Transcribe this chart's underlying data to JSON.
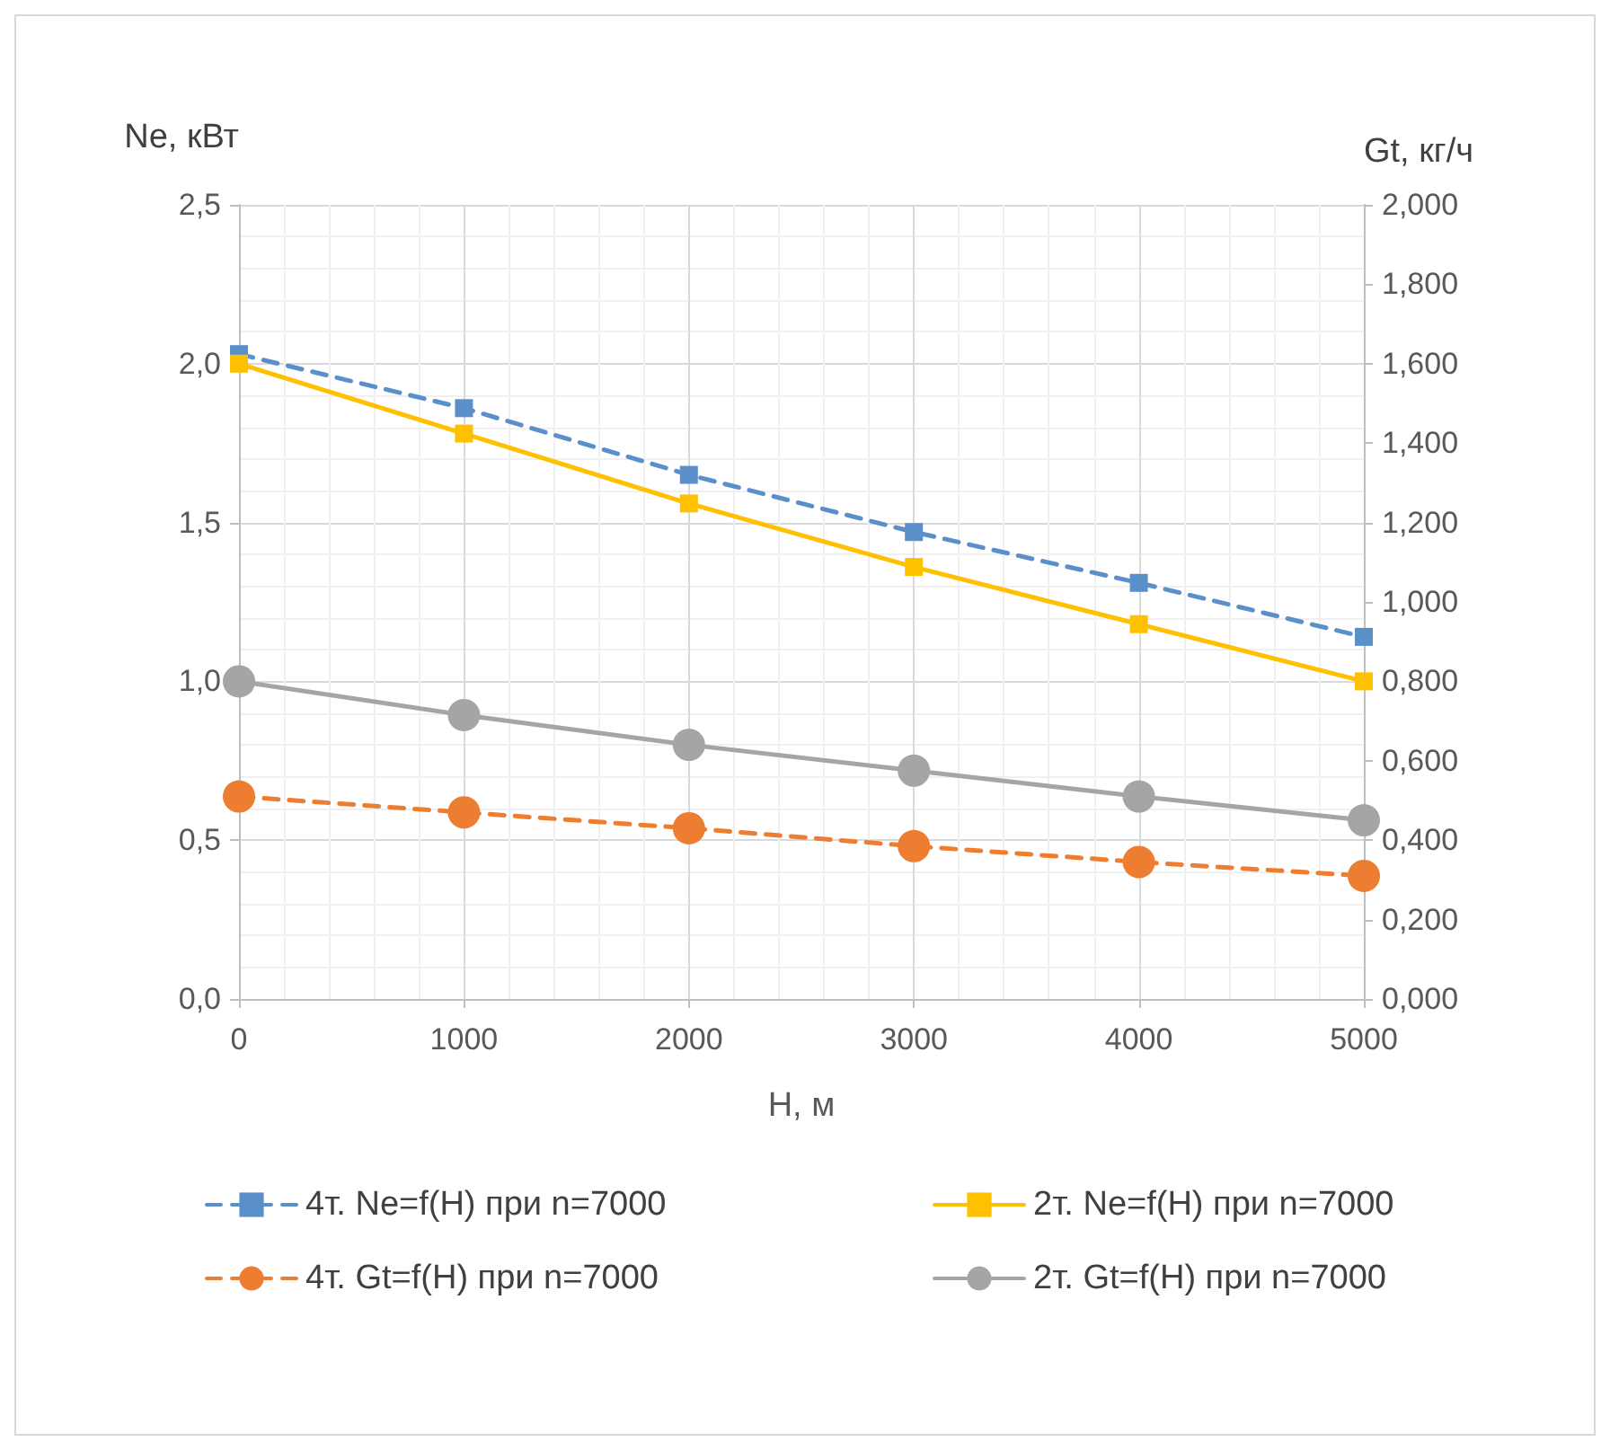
{
  "chart_data": {
    "type": "line",
    "xlabel": "H, м",
    "ylabel": "Ne, кВт",
    "y2label": "Gt, кг/ч",
    "x": [
      0,
      1000,
      2000,
      3000,
      4000,
      5000
    ],
    "series": [
      {
        "name": "4т. Ne=f(H) при n=7000",
        "color": "#5b8fc9",
        "marker": "square",
        "line_style": "dashed",
        "values": [
          2.03,
          1.86,
          1.65,
          1.47,
          1.31,
          1.14
        ]
      },
      {
        "name": "2т. Ne=f(H) при n=7000",
        "color": "#ffc000",
        "marker": "square",
        "line_style": "solid",
        "values": [
          2.0,
          1.78,
          1.56,
          1.36,
          1.18,
          1.0
        ]
      },
      {
        "name": "4т. Gt=f(H) при n=7000",
        "color": "#ed7d31",
        "marker": "circle",
        "line_style": "dashed",
        "axis": "y2",
        "values": [
          0.51,
          0.47,
          0.43,
          0.385,
          0.345,
          0.31
        ]
      },
      {
        "name": "2т. Gt=f(H) при n=7000",
        "color": "#a5a5a5",
        "marker": "circle",
        "line_style": "solid",
        "axis": "y2",
        "values": [
          0.8,
          0.715,
          0.64,
          0.575,
          0.51,
          0.45
        ]
      }
    ],
    "xlim": [
      0,
      5000
    ],
    "xticks": [
      0,
      1000,
      2000,
      3000,
      4000,
      5000
    ],
    "ylim": [
      0,
      2.5
    ],
    "yticks": [
      {
        "value": 0,
        "label": "0,0"
      },
      {
        "value": 0.5,
        "label": "0,5"
      },
      {
        "value": 1,
        "label": "1,0"
      },
      {
        "value": 1.5,
        "label": "1,5"
      },
      {
        "value": 2,
        "label": "2,0"
      },
      {
        "value": 2.5,
        "label": "2,5"
      }
    ],
    "y2lim": [
      0,
      2
    ],
    "y2ticks": [
      {
        "value": 0,
        "label": "0,000"
      },
      {
        "value": 0.2,
        "label": "0,200"
      },
      {
        "value": 0.4,
        "label": "0,400"
      },
      {
        "value": 0.6,
        "label": "0,600"
      },
      {
        "value": 0.8,
        "label": "0,800"
      },
      {
        "value": 1,
        "label": "1,000"
      },
      {
        "value": 1.2,
        "label": "1,200"
      },
      {
        "value": 1.4,
        "label": "1,400"
      },
      {
        "value": 1.6,
        "label": "1,600"
      },
      {
        "value": 1.8,
        "label": "1,800"
      },
      {
        "value": 2,
        "label": "2,000"
      }
    ],
    "grid": true,
    "legend": "bottom"
  }
}
